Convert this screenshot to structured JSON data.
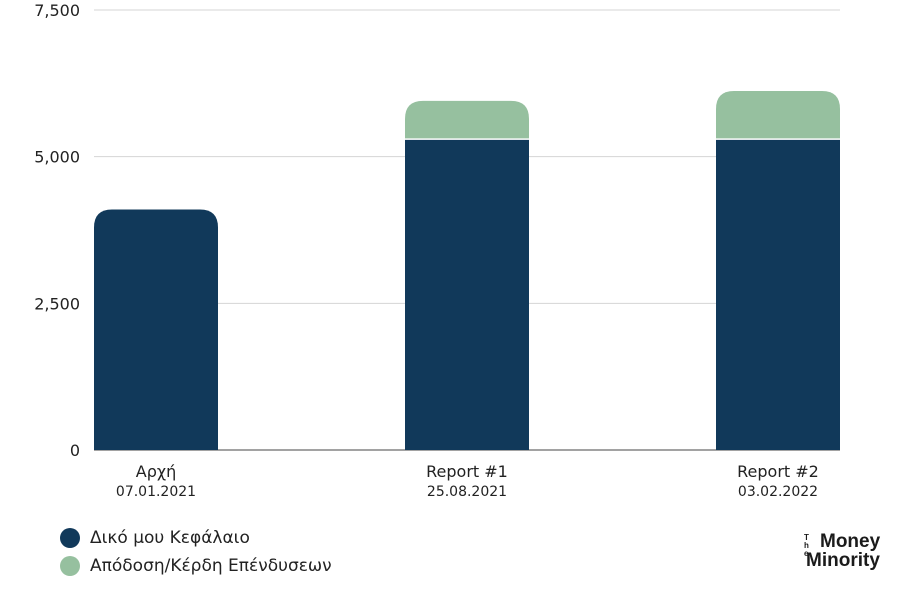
{
  "chart_data": {
    "type": "bar",
    "stacked": true,
    "categories": [
      "Αρχή",
      "Report #1",
      "Report #2"
    ],
    "category_dates": [
      "07.01.2021",
      "25.08.2021",
      "03.02.2022"
    ],
    "series": [
      {
        "name": "Δικό μου Κεφάλαιο",
        "values": [
          4100,
          5300,
          5300
        ],
        "color": "#11395a"
      },
      {
        "name": "Απόδοση/Κέρδη Επένδυσεων",
        "values": [
          0,
          650,
          820
        ],
        "color": "#96c09f"
      }
    ],
    "ylim": [
      0,
      7500
    ],
    "yticks": [
      0,
      2500,
      5000,
      7500
    ],
    "ytick_labels": [
      "0",
      "2,500",
      "5,000",
      "7,500"
    ],
    "grid": true,
    "legend_position": "bottom-left",
    "title": "",
    "xlabel": "",
    "ylabel": ""
  },
  "branding": {
    "logo_the": "The",
    "logo_money": "Money",
    "logo_minority": "Minority"
  }
}
